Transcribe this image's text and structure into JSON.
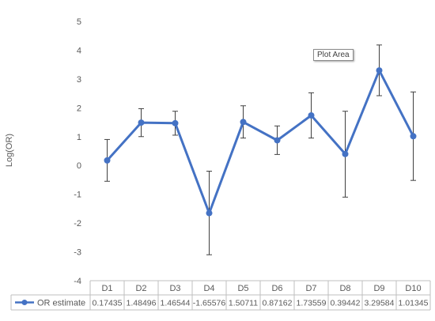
{
  "chart_data": {
    "type": "line",
    "ylabel": "Log(OR)",
    "ylim": [
      -4,
      5
    ],
    "yticks": [
      5,
      4,
      3,
      2,
      1,
      0,
      -1,
      -2,
      -3,
      -4
    ],
    "grid": false,
    "legend": "bottom-left",
    "categories": [
      "D1",
      "D2",
      "D3",
      "D4",
      "D5",
      "D6",
      "D7",
      "D8",
      "D9",
      "D10"
    ],
    "series": [
      {
        "name": "OR estimate",
        "color": "#4472c4",
        "values": [
          0.17435,
          1.48496,
          1.46544,
          -1.65576,
          1.50711,
          0.87162,
          1.73559,
          0.39442,
          3.29584,
          1.01345
        ],
        "value_labels": [
          "0.17435",
          "1.48496",
          "1.46544",
          "-1.65576",
          "1.50711",
          "0.87162",
          "1.73559",
          "0.39442",
          "3.29584",
          "1.01345"
        ],
        "error_low": [
          -0.55,
          1.0,
          1.05,
          -3.1,
          0.95,
          0.38,
          0.95,
          -1.1,
          2.42,
          -0.52
        ],
        "error_high": [
          0.9,
          1.97,
          1.88,
          -0.2,
          2.07,
          1.37,
          2.52,
          1.88,
          4.18,
          2.55
        ]
      }
    ],
    "data_table": true
  },
  "tooltip": {
    "text": "Plot Area"
  }
}
